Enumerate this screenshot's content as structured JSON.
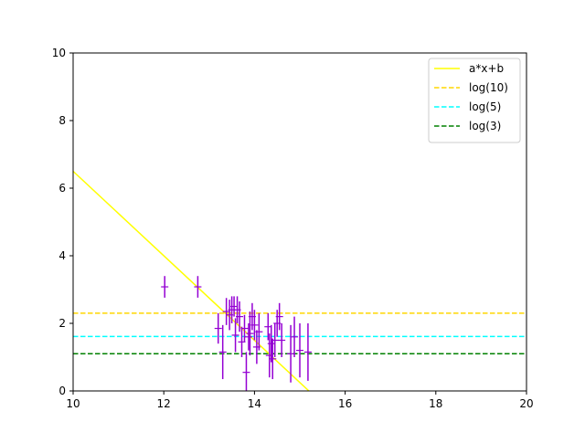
{
  "chart_data": {
    "type": "scatter",
    "title": "",
    "xlabel": "",
    "ylabel": "",
    "xlim": [
      10,
      20
    ],
    "ylim": [
      0,
      10
    ],
    "grid": false,
    "legend_position": "top-right",
    "x_ticks": [
      "10",
      "12",
      "14",
      "16",
      "18",
      "20"
    ],
    "y_ticks": [
      "0",
      "2",
      "4",
      "6",
      "8",
      "10"
    ],
    "series": [
      {
        "name": "a*x+b",
        "kind": "line",
        "style": "solid",
        "color": "#ffff00",
        "x": [
          10,
          15.2
        ],
        "y": [
          6.5,
          0
        ]
      },
      {
        "name": "log(10)",
        "kind": "hline",
        "style": "dashed",
        "color": "#ffd700",
        "y": 2.3
      },
      {
        "name": "log(5)",
        "kind": "hline",
        "style": "dashed",
        "color": "#00ffff",
        "y": 1.61
      },
      {
        "name": "log(3)",
        "kind": "hline",
        "style": "dashed",
        "color": "#008000",
        "y": 1.1
      },
      {
        "kind": "errorbar",
        "color": "#9400d3",
        "points": [
          {
            "x": 12.02,
            "y": 3.08,
            "err": 0.32
          },
          {
            "x": 12.75,
            "y": 3.08,
            "err": 0.32
          },
          {
            "x": 13.2,
            "y": 1.85,
            "err": 0.45
          },
          {
            "x": 13.3,
            "y": 1.15,
            "err": 0.8
          },
          {
            "x": 13.38,
            "y": 2.35,
            "err": 0.4
          },
          {
            "x": 13.45,
            "y": 2.25,
            "err": 0.45
          },
          {
            "x": 13.5,
            "y": 2.4,
            "err": 0.4
          },
          {
            "x": 13.55,
            "y": 2.5,
            "err": 0.3
          },
          {
            "x": 13.58,
            "y": 1.65,
            "err": 0.5
          },
          {
            "x": 13.62,
            "y": 2.4,
            "err": 0.4
          },
          {
            "x": 13.67,
            "y": 2.2,
            "err": 0.45
          },
          {
            "x": 13.72,
            "y": 1.45,
            "err": 0.45
          },
          {
            "x": 13.78,
            "y": 1.85,
            "err": 0.4
          },
          {
            "x": 13.82,
            "y": 0.55,
            "err": 0.6
          },
          {
            "x": 13.87,
            "y": 1.6,
            "err": 0.4
          },
          {
            "x": 13.9,
            "y": 1.7,
            "err": 0.65
          },
          {
            "x": 13.95,
            "y": 2.2,
            "err": 0.4
          },
          {
            "x": 14.0,
            "y": 1.95,
            "err": 0.45
          },
          {
            "x": 14.05,
            "y": 1.3,
            "err": 0.5
          },
          {
            "x": 14.1,
            "y": 1.75,
            "err": 0.55
          },
          {
            "x": 14.3,
            "y": 1.9,
            "err": 0.4
          },
          {
            "x": 14.33,
            "y": 1.05,
            "err": 0.65
          },
          {
            "x": 14.37,
            "y": 1.4,
            "err": 0.55
          },
          {
            "x": 14.4,
            "y": 0.95,
            "err": 0.6
          },
          {
            "x": 14.45,
            "y": 1.5,
            "err": 0.5
          },
          {
            "x": 14.5,
            "y": 2.0,
            "err": 0.4
          },
          {
            "x": 14.55,
            "y": 2.2,
            "err": 0.4
          },
          {
            "x": 14.6,
            "y": 1.5,
            "err": 0.5
          },
          {
            "x": 14.8,
            "y": 1.1,
            "err": 0.85
          },
          {
            "x": 14.88,
            "y": 1.6,
            "err": 0.6
          },
          {
            "x": 15.0,
            "y": 1.2,
            "err": 0.8
          },
          {
            "x": 15.18,
            "y": 1.15,
            "err": 0.85
          }
        ]
      }
    ]
  }
}
